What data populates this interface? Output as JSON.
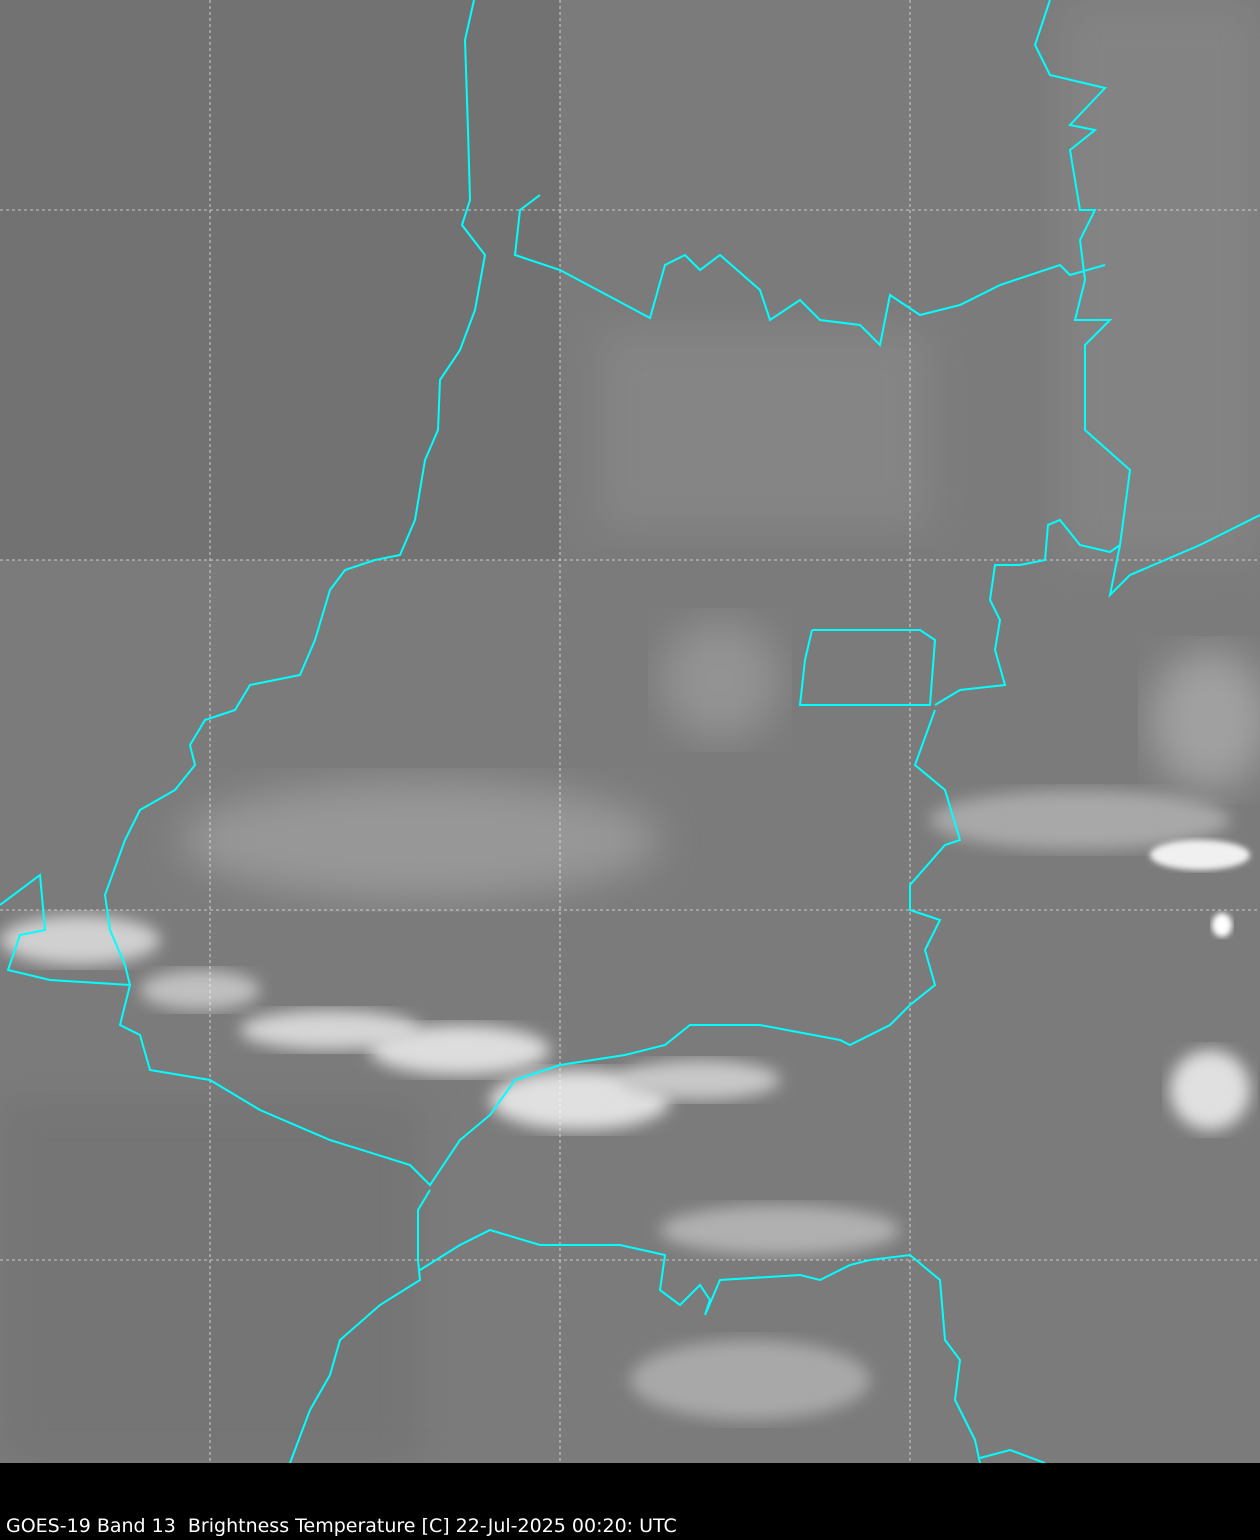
{
  "caption": "GOES-19 Band 13  Brightness Temperature [C] 22-Jul-2025 00:20: UTC",
  "colors": {
    "border": "#00ffff",
    "grid": "#ffffff",
    "background": "#000000"
  },
  "imagery": "grayscale infrared brightness temperature"
}
